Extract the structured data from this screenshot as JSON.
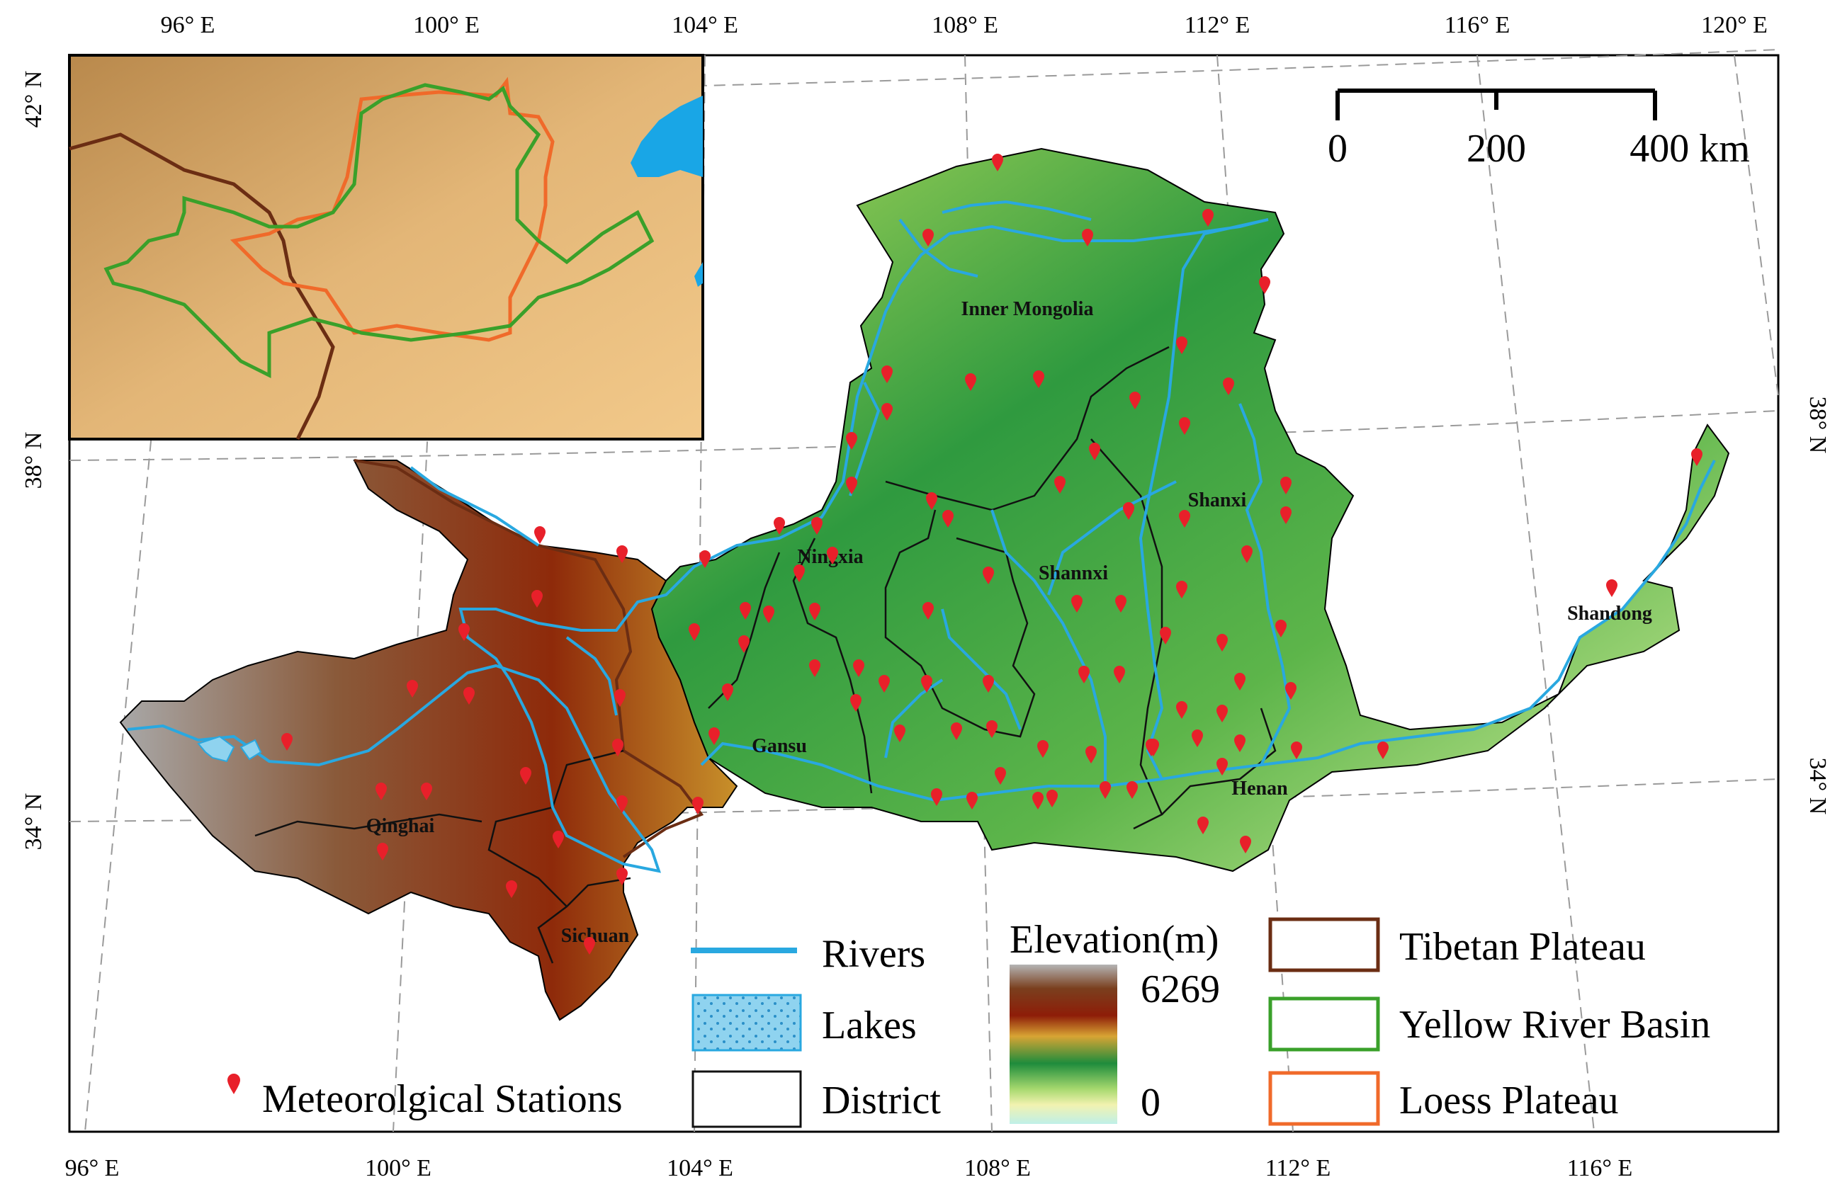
{
  "lon_ticks_top": [
    "96° E",
    "100° E",
    "104° E",
    "108° E",
    "112° E",
    "116° E",
    "120° E"
  ],
  "lon_ticks_bottom": [
    "96° E",
    "100° E",
    "104° E",
    "108° E",
    "112° E",
    "116° E"
  ],
  "lat_ticks_left": [
    "42° N",
    "38° N",
    "34° N"
  ],
  "lat_ticks_right": [
    "38° N",
    "34° N"
  ],
  "scale_bar": {
    "labels": [
      "0",
      "200",
      "400 km"
    ]
  },
  "regions": {
    "inner_mongolia": "Inner Mongolia",
    "shanxi": "Shanxi",
    "ningxia": "Ningxia",
    "shannxi": "Shannxi",
    "shandong": "Shandong",
    "gansu": "Gansu",
    "henan": "Henan",
    "qinghai": "Qinghai",
    "sichuan": "Sichuan"
  },
  "legend": {
    "rivers": "Rivers",
    "lakes": "Lakes",
    "district": "District",
    "stations": "Meteorolgical Stations",
    "elevation_title": "Elevation(m)",
    "elevation_max": "6269",
    "elevation_min": "0",
    "tibetan_plateau": "Tibetan Plateau",
    "yellow_river_basin": "Yellow River Basin",
    "loess_plateau": "Loess Plateau"
  },
  "colors": {
    "river": "#29a8e0",
    "lake": "#8fd3ef",
    "station": "#e8202a",
    "tibetan_plateau": "#6b2d13",
    "yellow_river_basin": "#3aa02a",
    "loess_plateau": "#f06a2a",
    "district": "#111111"
  },
  "elevation_colors": [
    "#b4b4b4",
    "#7a3f1e",
    "#8e1d08",
    "#d8a434",
    "#1e8c3c",
    "#a6d86e",
    "#f2f2b0",
    "#bff0e8"
  ],
  "stations": [
    [
      1408,
      232
    ],
    [
      1310,
      338
    ],
    [
      1535,
      338
    ],
    [
      1705,
      310
    ],
    [
      1785,
      405
    ],
    [
      1668,
      490
    ],
    [
      1370,
      542
    ],
    [
      1466,
      538
    ],
    [
      1252,
      531
    ],
    [
      1252,
      584
    ],
    [
      1202,
      625
    ],
    [
      1202,
      688
    ],
    [
      1602,
      568
    ],
    [
      1545,
      640
    ],
    [
      1672,
      604
    ],
    [
      1734,
      548
    ],
    [
      1315,
      710
    ],
    [
      1338,
      735
    ],
    [
      1496,
      687
    ],
    [
      1593,
      724
    ],
    [
      1672,
      735
    ],
    [
      1815,
      688
    ],
    [
      1815,
      730
    ],
    [
      1100,
      745
    ],
    [
      1153,
      745
    ],
    [
      1395,
      815
    ],
    [
      1310,
      865
    ],
    [
      1520,
      855
    ],
    [
      1582,
      855
    ],
    [
      1668,
      835
    ],
    [
      1760,
      785
    ],
    [
      1052,
      865
    ],
    [
      1128,
      812
    ],
    [
      1150,
      866
    ],
    [
      1175,
      787
    ],
    [
      995,
      792
    ],
    [
      980,
      895
    ],
    [
      1050,
      912
    ],
    [
      1150,
      946
    ],
    [
      1212,
      946
    ],
    [
      1208,
      995
    ],
    [
      1248,
      968
    ],
    [
      1308,
      968
    ],
    [
      1395,
      968
    ],
    [
      1350,
      1035
    ],
    [
      1400,
      1032
    ],
    [
      1530,
      955
    ],
    [
      1580,
      955
    ],
    [
      1645,
      900
    ],
    [
      1725,
      910
    ],
    [
      1750,
      965
    ],
    [
      1808,
      890
    ],
    [
      1822,
      978
    ],
    [
      1668,
      1005
    ],
    [
      1725,
      1010
    ],
    [
      1625,
      1058
    ],
    [
      1690,
      1045
    ],
    [
      1750,
      1052
    ],
    [
      1270,
      1038
    ],
    [
      1540,
      1068
    ],
    [
      1472,
      1060
    ],
    [
      1412,
      1098
    ],
    [
      1322,
      1128
    ],
    [
      1372,
      1133
    ],
    [
      1465,
      1133
    ],
    [
      1485,
      1130
    ],
    [
      1560,
      1118
    ],
    [
      1598,
      1118
    ],
    [
      1628,
      1058
    ],
    [
      1698,
      1168
    ],
    [
      1758,
      1195
    ],
    [
      1952,
      1062
    ],
    [
      1830,
      1062
    ],
    [
      1725,
      1085
    ],
    [
      2395,
      648
    ],
    [
      2275,
      833
    ],
    [
      1085,
      870
    ],
    [
      1027,
      980
    ],
    [
      1008,
      1042
    ],
    [
      878,
      785
    ],
    [
      762,
      758
    ],
    [
      758,
      848
    ],
    [
      655,
      895
    ],
    [
      662,
      985
    ],
    [
      582,
      975
    ],
    [
      405,
      1050
    ],
    [
      538,
      1120
    ],
    [
      602,
      1120
    ],
    [
      742,
      1098
    ],
    [
      788,
      1188
    ],
    [
      872,
      1058
    ],
    [
      878,
      1138
    ],
    [
      722,
      1258
    ],
    [
      878,
      1240
    ],
    [
      540,
      1205
    ],
    [
      832,
      1338
    ],
    [
      985,
      1140
    ],
    [
      875,
      988
    ]
  ]
}
